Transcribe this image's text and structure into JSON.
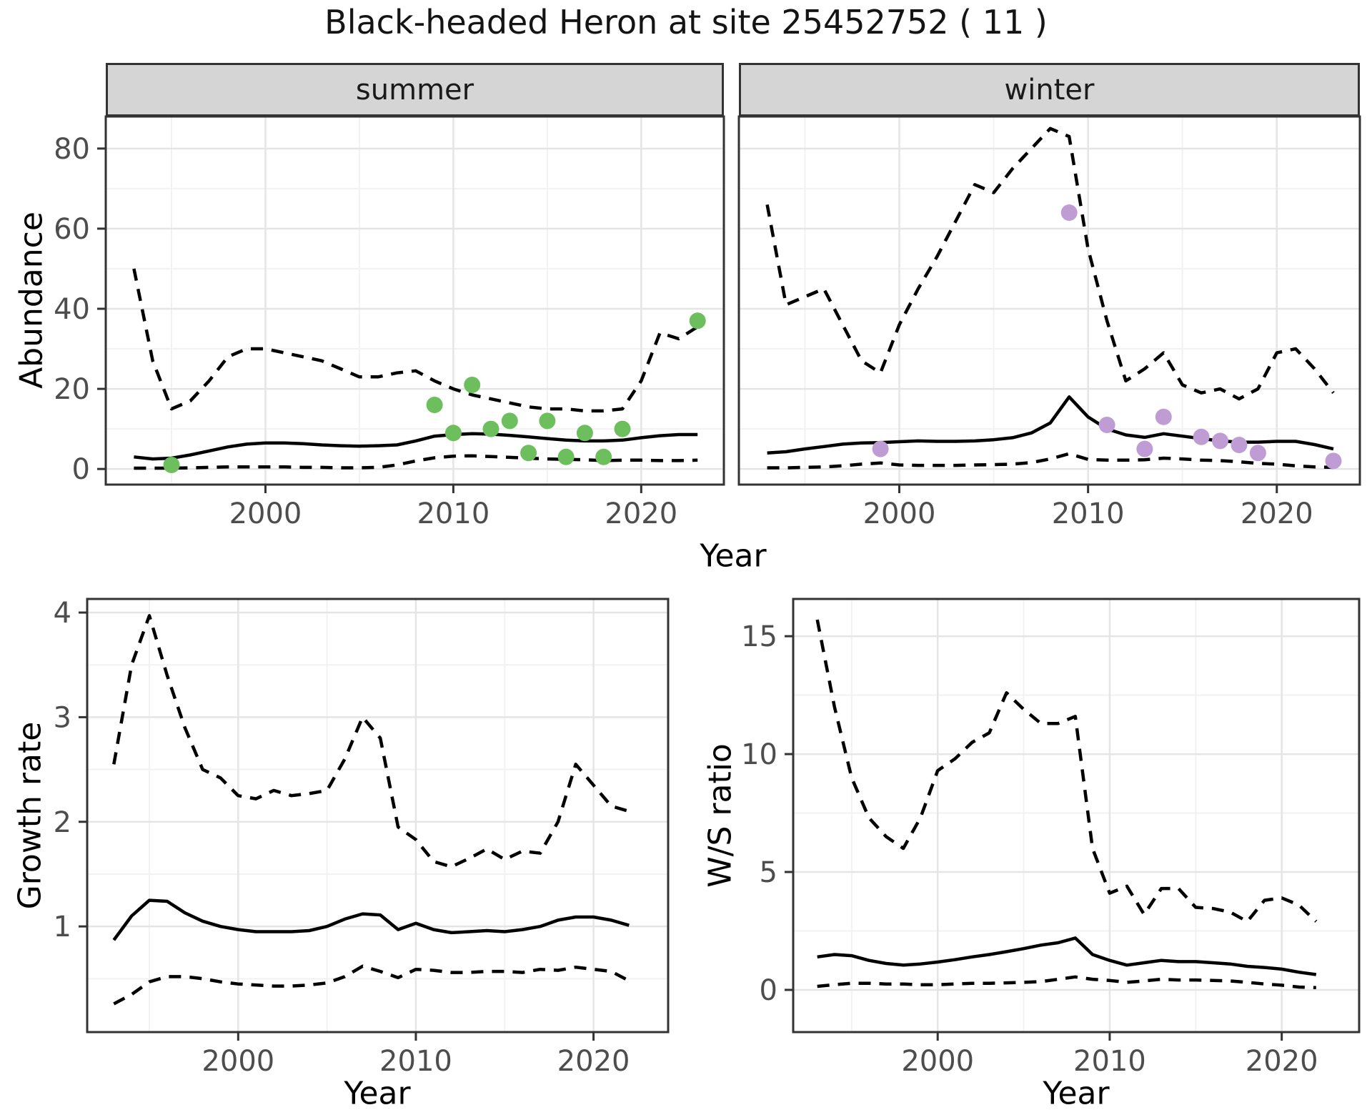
{
  "title": "Black-headed Heron at site 25452752 ( 11 )",
  "colors": {
    "summer_points": "#6dbf5e",
    "winter_points": "#bf9cd4",
    "fit_line": "#000000",
    "ci_line": "#000000",
    "strip_bg": "#d5d5d5",
    "strip_border": "#333333",
    "panel_border": "#333333",
    "grid_major": "#e5e5e5",
    "grid_minor": "#f2f2f2",
    "tick_label": "#4d4d4d",
    "tick_mark": "#333333"
  },
  "chart_data": [
    {
      "id": "abundance-summer",
      "type": "line",
      "facet_label": "summer",
      "xlabel": "Year",
      "ylabel": "Abundance",
      "xlim": [
        1991.5,
        2024.4
      ],
      "ylim": [
        -3.9,
        88.0
      ],
      "xticks": [
        2000,
        2010,
        2020
      ],
      "xtick_labels": [
        "2000",
        "2010",
        "2020"
      ],
      "yticks": [
        0,
        20,
        40,
        60,
        80
      ],
      "ytick_labels": [
        "0",
        "20",
        "40",
        "60",
        "80"
      ],
      "minor_x": [
        1995,
        2005,
        2015
      ],
      "minor_y": [
        10,
        30,
        50,
        70
      ],
      "show_y_labels": true,
      "grid": true,
      "legend": "none",
      "series": [
        {
          "name": "upper-ci",
          "style": "dashed",
          "years": [
            1993,
            1994,
            1995,
            1996,
            1997,
            1998,
            1999,
            2000,
            2001,
            2002,
            2003,
            2004,
            2005,
            2006,
            2007,
            2008,
            2009,
            2010,
            2011,
            2012,
            2013,
            2014,
            2015,
            2016,
            2017,
            2018,
            2019,
            2020,
            2021,
            2022,
            2023
          ],
          "values": [
            50,
            27,
            15,
            17,
            22,
            28,
            30,
            30,
            29,
            28,
            27,
            25,
            23,
            23,
            24,
            24.5,
            22,
            20,
            18.5,
            17.5,
            16.5,
            15.5,
            15,
            15,
            14.5,
            14.5,
            15,
            22,
            34,
            32.5,
            35.5
          ]
        },
        {
          "name": "fit",
          "style": "solid",
          "years": [
            1993,
            1994,
            1995,
            1996,
            1997,
            1998,
            1999,
            2000,
            2001,
            2002,
            2003,
            2004,
            2005,
            2006,
            2007,
            2008,
            2009,
            2010,
            2011,
            2012,
            2013,
            2014,
            2015,
            2016,
            2017,
            2018,
            2019,
            2020,
            2021,
            2022,
            2023
          ],
          "values": [
            3,
            2.5,
            2.7,
            3.5,
            4.5,
            5.5,
            6.2,
            6.5,
            6.5,
            6.3,
            6,
            5.8,
            5.7,
            5.8,
            6,
            7,
            8.2,
            8.6,
            8.8,
            8.7,
            8.4,
            8,
            7.6,
            7.2,
            7,
            7,
            7.2,
            7.8,
            8.3,
            8.6,
            8.6
          ]
        },
        {
          "name": "lower-ci",
          "style": "dashed",
          "years": [
            1993,
            1994,
            1995,
            1996,
            1997,
            1998,
            1999,
            2000,
            2001,
            2002,
            2003,
            2004,
            2005,
            2006,
            2007,
            2008,
            2009,
            2010,
            2011,
            2012,
            2013,
            2014,
            2015,
            2016,
            2017,
            2018,
            2019,
            2020,
            2021,
            2022,
            2023
          ],
          "values": [
            0.2,
            0.2,
            0.2,
            0.3,
            0.4,
            0.5,
            0.5,
            0.5,
            0.5,
            0.4,
            0.4,
            0.3,
            0.3,
            0.4,
            1,
            2,
            2.8,
            3.2,
            3.3,
            3.1,
            2.9,
            2.7,
            2.5,
            2.4,
            2.3,
            2.1,
            2.2,
            2.2,
            2.1,
            2.1,
            2.2
          ]
        }
      ],
      "points": {
        "name": "observations-summer",
        "color": "#6dbf5e",
        "years": [
          1995,
          2009,
          2010,
          2011,
          2012,
          2013,
          2014,
          2015,
          2016,
          2017,
          2018,
          2019,
          2023
        ],
        "values": [
          1,
          16,
          9,
          21,
          10,
          12,
          4,
          12,
          3,
          9,
          3,
          10,
          37
        ]
      }
    },
    {
      "id": "abundance-winter",
      "type": "line",
      "facet_label": "winter",
      "ylabel": "Abundance",
      "xlim": [
        1991.5,
        2024.4
      ],
      "ylim": [
        -3.9,
        88.0
      ],
      "xticks": [
        2000,
        2010,
        2020
      ],
      "xtick_labels": [
        "2000",
        "2010",
        "2020"
      ],
      "yticks": [
        0,
        20,
        40,
        60,
        80
      ],
      "ytick_labels": [
        "0",
        "20",
        "40",
        "60",
        "80"
      ],
      "minor_x": [
        1995,
        2005,
        2015
      ],
      "minor_y": [
        10,
        30,
        50,
        70
      ],
      "show_y_labels": false,
      "grid": true,
      "legend": "none",
      "series": [
        {
          "name": "upper-ci",
          "style": "dashed",
          "years": [
            1993,
            1994,
            1995,
            1996,
            1997,
            1998,
            1999,
            2000,
            2001,
            2002,
            2003,
            2004,
            2005,
            2006,
            2007,
            2008,
            2009,
            2010,
            2011,
            2012,
            2013,
            2014,
            2015,
            2016,
            2017,
            2018,
            2019,
            2020,
            2021,
            2022,
            2023
          ],
          "values": [
            66,
            41,
            43,
            45,
            36,
            27,
            24,
            36,
            45,
            53,
            62,
            71,
            69,
            75,
            80,
            85,
            83,
            55,
            37,
            22,
            25,
            29,
            21,
            19,
            20,
            17.5,
            20,
            29,
            30,
            25,
            19
          ]
        },
        {
          "name": "fit",
          "style": "solid",
          "years": [
            1993,
            1994,
            1995,
            1996,
            1997,
            1998,
            1999,
            2000,
            2001,
            2002,
            2003,
            2004,
            2005,
            2006,
            2007,
            2008,
            2009,
            2010,
            2011,
            2012,
            2013,
            2014,
            2015,
            2016,
            2017,
            2018,
            2019,
            2020,
            2021,
            2022,
            2023
          ],
          "values": [
            4,
            4.3,
            5,
            5.6,
            6.2,
            6.5,
            6.6,
            6.8,
            7,
            6.9,
            6.9,
            7,
            7.3,
            7.8,
            9,
            11.5,
            18,
            13,
            10,
            8.5,
            7.9,
            8.8,
            8.2,
            7.6,
            7,
            6.7,
            6.7,
            6.9,
            6.9,
            6.1,
            5
          ]
        },
        {
          "name": "lower-ci",
          "style": "dashed",
          "years": [
            1993,
            1994,
            1995,
            1996,
            1997,
            1998,
            1999,
            2000,
            2001,
            2002,
            2003,
            2004,
            2005,
            2006,
            2007,
            2008,
            2009,
            2010,
            2011,
            2012,
            2013,
            2014,
            2015,
            2016,
            2017,
            2018,
            2019,
            2020,
            2021,
            2022,
            2023
          ],
          "values": [
            0.3,
            0.3,
            0.4,
            0.5,
            0.8,
            1.2,
            1.5,
            1,
            0.9,
            0.9,
            0.9,
            1,
            1.1,
            1.2,
            1.6,
            2.5,
            3.8,
            2.4,
            2.2,
            2.2,
            2.3,
            2.7,
            2.5,
            2.2,
            2.1,
            1.8,
            1.4,
            1.2,
            0.8,
            0.5,
            0.4
          ]
        }
      ],
      "points": {
        "name": "observations-winter",
        "color": "#bf9cd4",
        "years": [
          1999,
          2009,
          2011,
          2013,
          2014,
          2016,
          2017,
          2018,
          2019,
          2023
        ],
        "values": [
          5,
          64,
          11,
          5,
          13,
          8,
          7,
          6,
          4,
          2
        ]
      }
    },
    {
      "id": "growth-rate",
      "type": "line",
      "xlabel": "Year",
      "ylabel": "Growth rate",
      "xlim": [
        1991.5,
        2024.2
      ],
      "ylim": [
        -0.01,
        4.13
      ],
      "xticks": [
        2000,
        2010,
        2020
      ],
      "xtick_labels": [
        "2000",
        "2010",
        "2020"
      ],
      "yticks": [
        1,
        2,
        3,
        4
      ],
      "ytick_labels": [
        "1",
        "2",
        "3",
        "4"
      ],
      "minor_x": [
        1995,
        2005,
        2015
      ],
      "minor_y": [
        0.5,
        1.5,
        2.5,
        3.5
      ],
      "show_y_labels": true,
      "grid": true,
      "legend": "none",
      "series": [
        {
          "name": "upper-ci",
          "style": "dashed",
          "years": [
            1993,
            1994,
            1995,
            1996,
            1997,
            1998,
            1999,
            2000,
            2001,
            2002,
            2003,
            2004,
            2005,
            2006,
            2007,
            2008,
            2009,
            2010,
            2011,
            2012,
            2013,
            2014,
            2015,
            2016,
            2017,
            2018,
            2019,
            2020,
            2021,
            2022
          ],
          "values": [
            2.55,
            3.5,
            3.97,
            3.4,
            2.9,
            2.5,
            2.42,
            2.25,
            2.22,
            2.3,
            2.25,
            2.27,
            2.3,
            2.6,
            3.0,
            2.8,
            1.95,
            1.83,
            1.62,
            1.57,
            1.65,
            1.74,
            1.64,
            1.72,
            1.7,
            2.0,
            2.55,
            2.35,
            2.15,
            2.1
          ]
        },
        {
          "name": "fit",
          "style": "solid",
          "years": [
            1993,
            1994,
            1995,
            1996,
            1997,
            1998,
            1999,
            2000,
            2001,
            2002,
            2003,
            2004,
            2005,
            2006,
            2007,
            2008,
            2009,
            2010,
            2011,
            2012,
            2013,
            2014,
            2015,
            2016,
            2017,
            2018,
            2019,
            2020,
            2021,
            2022
          ],
          "values": [
            0.87,
            1.1,
            1.25,
            1.24,
            1.13,
            1.05,
            1.0,
            0.97,
            0.95,
            0.95,
            0.95,
            0.96,
            1.0,
            1.07,
            1.12,
            1.11,
            0.97,
            1.03,
            0.97,
            0.94,
            0.95,
            0.96,
            0.95,
            0.97,
            1.0,
            1.06,
            1.09,
            1.09,
            1.06,
            1.01
          ]
        },
        {
          "name": "lower-ci",
          "style": "dashed",
          "years": [
            1993,
            1994,
            1995,
            1996,
            1997,
            1998,
            1999,
            2000,
            2001,
            2002,
            2003,
            2004,
            2005,
            2006,
            2007,
            2008,
            2009,
            2010,
            2011,
            2012,
            2013,
            2014,
            2015,
            2016,
            2017,
            2018,
            2019,
            2020,
            2021,
            2022
          ],
          "values": [
            0.26,
            0.35,
            0.47,
            0.52,
            0.52,
            0.5,
            0.47,
            0.45,
            0.44,
            0.43,
            0.43,
            0.44,
            0.46,
            0.52,
            0.62,
            0.57,
            0.51,
            0.59,
            0.58,
            0.56,
            0.56,
            0.57,
            0.57,
            0.56,
            0.59,
            0.58,
            0.61,
            0.59,
            0.57,
            0.48
          ]
        }
      ]
    },
    {
      "id": "ws-ratio",
      "type": "line",
      "xlabel": "Year",
      "ylabel": "W/S ratio",
      "xlim": [
        1991.6,
        2024.5
      ],
      "ylim": [
        -1.79,
        16.58
      ],
      "xticks": [
        2000,
        2010,
        2020
      ],
      "xtick_labels": [
        "2000",
        "2010",
        "2020"
      ],
      "yticks": [
        0,
        5,
        10,
        15
      ],
      "ytick_labels": [
        "0",
        "5",
        "10",
        "15"
      ],
      "minor_x": [
        1995,
        2005,
        2015
      ],
      "minor_y": [
        2.5,
        7.5,
        12.5
      ],
      "show_y_labels": true,
      "grid": true,
      "legend": "none",
      "series": [
        {
          "name": "upper-ci",
          "style": "dashed",
          "years": [
            1993,
            1994,
            1995,
            1996,
            1997,
            1998,
            1999,
            2000,
            2001,
            2002,
            2003,
            2004,
            2005,
            2006,
            2007,
            2008,
            2009,
            2010,
            2011,
            2012,
            2013,
            2014,
            2015,
            2016,
            2017,
            2018,
            2019,
            2020,
            2021,
            2022
          ],
          "values": [
            15.7,
            12,
            9,
            7.3,
            6.5,
            6.0,
            7.3,
            9.3,
            9.8,
            10.5,
            10.9,
            12.6,
            11.9,
            11.3,
            11.3,
            11.6,
            6.0,
            4.1,
            4.4,
            3.2,
            4.3,
            4.3,
            3.5,
            3.45,
            3.3,
            2.9,
            3.8,
            3.9,
            3.6,
            2.9
          ]
        },
        {
          "name": "fit",
          "style": "solid",
          "years": [
            1993,
            1994,
            1995,
            1996,
            1997,
            1998,
            1999,
            2000,
            2001,
            2002,
            2003,
            2004,
            2005,
            2006,
            2007,
            2008,
            2009,
            2010,
            2011,
            2012,
            2013,
            2014,
            2015,
            2016,
            2017,
            2018,
            2019,
            2020,
            2021,
            2022
          ],
          "values": [
            1.4,
            1.5,
            1.45,
            1.25,
            1.12,
            1.05,
            1.1,
            1.18,
            1.28,
            1.4,
            1.5,
            1.62,
            1.75,
            1.9,
            2.0,
            2.2,
            1.5,
            1.25,
            1.05,
            1.15,
            1.25,
            1.2,
            1.2,
            1.15,
            1.1,
            1.0,
            0.95,
            0.88,
            0.75,
            0.65
          ]
        },
        {
          "name": "lower-ci",
          "style": "dashed",
          "years": [
            1993,
            1994,
            1995,
            1996,
            1997,
            1998,
            1999,
            2000,
            2001,
            2002,
            2003,
            2004,
            2005,
            2006,
            2007,
            2008,
            2009,
            2010,
            2011,
            2012,
            2013,
            2014,
            2015,
            2016,
            2017,
            2018,
            2019,
            2020,
            2021,
            2022
          ],
          "values": [
            0.15,
            0.22,
            0.28,
            0.28,
            0.25,
            0.25,
            0.22,
            0.22,
            0.25,
            0.28,
            0.28,
            0.3,
            0.32,
            0.35,
            0.45,
            0.55,
            0.45,
            0.4,
            0.32,
            0.38,
            0.45,
            0.42,
            0.42,
            0.4,
            0.38,
            0.32,
            0.25,
            0.2,
            0.12,
            0.1
          ]
        }
      ]
    }
  ]
}
